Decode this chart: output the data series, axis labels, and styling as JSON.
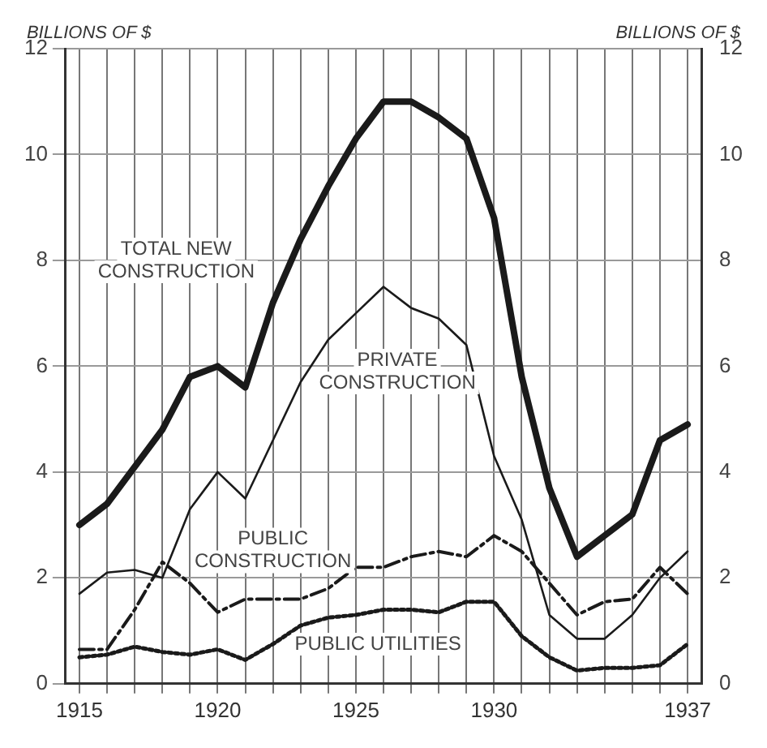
{
  "chart_data": {
    "type": "line",
    "ylabel": "BILLIONS OF $",
    "y2label": "BILLIONS OF $",
    "x": [
      1915,
      1916,
      1917,
      1918,
      1919,
      1920,
      1921,
      1922,
      1923,
      1924,
      1925,
      1926,
      1927,
      1928,
      1929,
      1930,
      1931,
      1932,
      1933,
      1934,
      1935,
      1936,
      1937
    ],
    "series": [
      {
        "name": "TOTAL NEW CONSTRUCTION",
        "color": "#1a1a1a",
        "line_style": "solid",
        "values": [
          3.0,
          3.4,
          4.1,
          4.8,
          5.8,
          6.0,
          5.6,
          7.2,
          8.4,
          9.4,
          10.3,
          11.0,
          11.0,
          10.7,
          10.3,
          8.8,
          5.8,
          3.7,
          2.4,
          2.8,
          3.2,
          4.6,
          4.9
        ]
      },
      {
        "name": "PRIVATE CONSTRUCTION",
        "color": "#1a1a1a",
        "line_style": "solid",
        "values": [
          1.7,
          2.1,
          2.15,
          2.0,
          3.3,
          4.0,
          3.5,
          4.6,
          5.7,
          6.5,
          7.0,
          7.5,
          7.1,
          6.9,
          6.4,
          4.3,
          3.1,
          1.3,
          0.85,
          0.85,
          1.3,
          2.0,
          2.5
        ]
      },
      {
        "name": "PUBLIC CONSTRUCTION",
        "color": "#1a1a1a",
        "line_style": "dashed",
        "values": [
          0.65,
          0.65,
          1.4,
          2.3,
          1.9,
          1.35,
          1.6,
          1.6,
          1.6,
          1.8,
          2.2,
          2.2,
          2.4,
          2.5,
          2.4,
          2.8,
          2.5,
          1.9,
          1.3,
          1.55,
          1.6,
          2.2,
          1.7
        ]
      },
      {
        "name": "PUBLIC UTILITIES",
        "color": "#1a1a1a",
        "line_style": "dotted",
        "values": [
          0.5,
          0.55,
          0.7,
          0.6,
          0.55,
          0.65,
          0.45,
          0.75,
          1.1,
          1.25,
          1.3,
          1.4,
          1.4,
          1.35,
          1.55,
          1.55,
          0.9,
          0.5,
          0.25,
          0.3,
          0.3,
          0.35,
          0.75
        ]
      }
    ],
    "xlim": [
      1914.5,
      1937.5
    ],
    "xticks": [
      {
        "value": 1915,
        "label": "1915"
      },
      {
        "value": 1916,
        "label": null
      },
      {
        "value": 1917,
        "label": null
      },
      {
        "value": 1918,
        "label": null
      },
      {
        "value": 1919,
        "label": null
      },
      {
        "value": 1920,
        "label": "1920"
      },
      {
        "value": 1921,
        "label": null
      },
      {
        "value": 1922,
        "label": null
      },
      {
        "value": 1923,
        "label": null
      },
      {
        "value": 1924,
        "label": null
      },
      {
        "value": 1925,
        "label": "1925"
      },
      {
        "value": 1926,
        "label": null
      },
      {
        "value": 1927,
        "label": null
      },
      {
        "value": 1928,
        "label": null
      },
      {
        "value": 1929,
        "label": null
      },
      {
        "value": 1930,
        "label": "1930"
      },
      {
        "value": 1931,
        "label": null
      },
      {
        "value": 1932,
        "label": null
      },
      {
        "value": 1933,
        "label": null
      },
      {
        "value": 1934,
        "label": null
      },
      {
        "value": 1935,
        "label": null
      },
      {
        "value": 1936,
        "label": null
      },
      {
        "value": 1937,
        "label": "1937"
      }
    ],
    "ylim": [
      0,
      12
    ],
    "yticks": [
      0,
      2,
      4,
      6,
      8,
      10,
      12
    ],
    "y2lim": [
      0,
      12
    ],
    "y2ticks": [
      0,
      2,
      4,
      6,
      8,
      10,
      12
    ],
    "grid": true,
    "legend": false,
    "marker": "none"
  }
}
